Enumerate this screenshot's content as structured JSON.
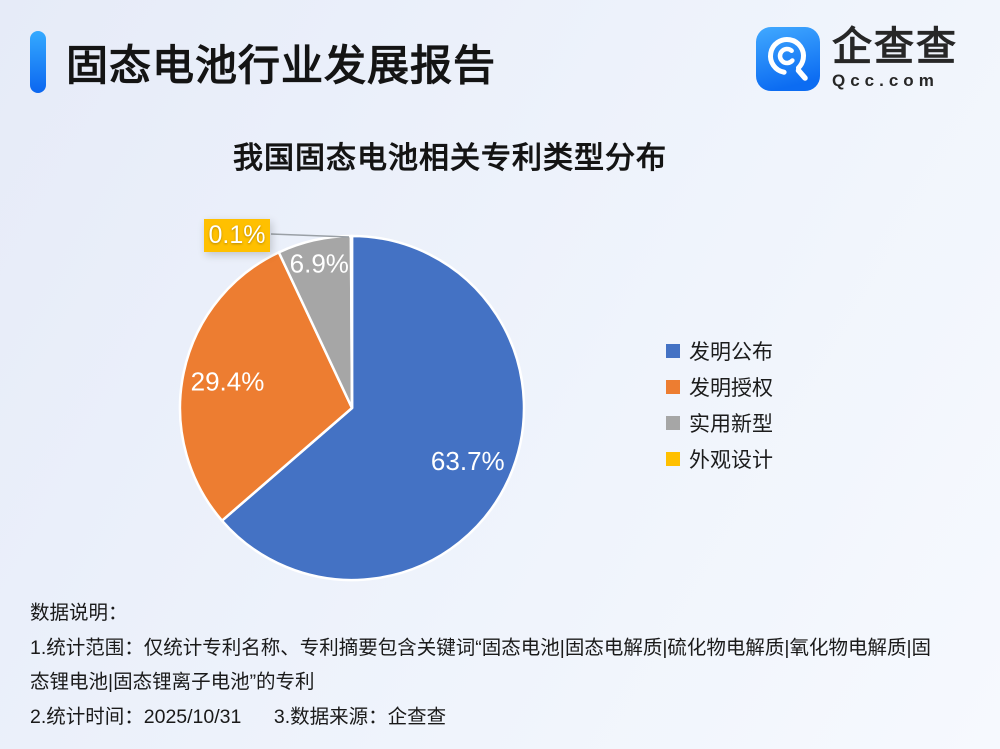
{
  "header": {
    "title": "固态电池行业发展报告",
    "logo": {
      "name": "企查查",
      "domain": "Qcc.com",
      "icon_gradient_top": "#41a9ff",
      "icon_gradient_bottom": "#0c6cf2"
    }
  },
  "chart": {
    "title": "我国固态电池相关专利类型分布"
  },
  "chart_data": {
    "type": "pie",
    "title": "我国固态电池相关专利类型分布",
    "start_angle_deg": 0,
    "direction": "clockwise",
    "legend_position": "right",
    "slices": [
      {
        "label": "发明公布",
        "value": 63.7,
        "display": "63.7%",
        "color": "#4472C4"
      },
      {
        "label": "发明授权",
        "value": 29.4,
        "display": "29.4%",
        "color": "#ED7D31"
      },
      {
        "label": "实用新型",
        "value": 6.9,
        "display": "6.9%",
        "color": "#A6A6A6"
      },
      {
        "label": "外观设计",
        "value": 0.1,
        "display": "0.1%",
        "color": "#FFC000"
      }
    ],
    "callout": {
      "slice": "外观设计",
      "display": "0.1%"
    }
  },
  "notes": {
    "heading": "数据说明：",
    "line1": "1.统计范围：仅统计专利名称、专利摘要包含关键词“固态电池|固态电解质|硫化物电解质|氧化物电解质|固",
    "line2": "态锂电池|固态锂离子电池”的专利",
    "line3": "2.统计时间：2025/10/31      3.数据来源：企查查"
  }
}
